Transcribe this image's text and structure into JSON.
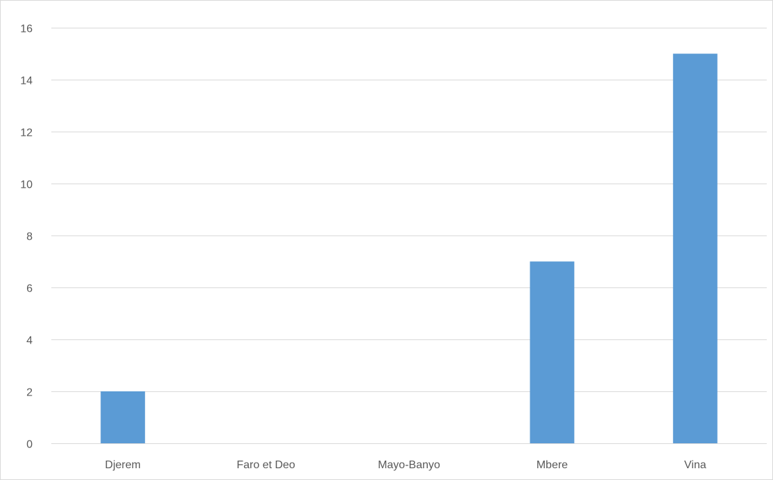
{
  "chart_data": {
    "type": "bar",
    "title": "",
    "xlabel": "",
    "ylabel": "",
    "categories": [
      "Djerem",
      "Faro et Deo",
      "Mayo-Banyo",
      "Mbere",
      "Vina"
    ],
    "values": [
      2,
      0,
      0,
      7,
      15
    ],
    "ylim": [
      0,
      16
    ],
    "yticks": [
      "0",
      "2",
      "4",
      "6",
      "8",
      "10",
      "12",
      "14",
      "16"
    ],
    "grid": true,
    "legend": "none",
    "bar_color": "#5b9bd5",
    "gridline_color": "#d9d9d9",
    "label_color": "#595959"
  }
}
